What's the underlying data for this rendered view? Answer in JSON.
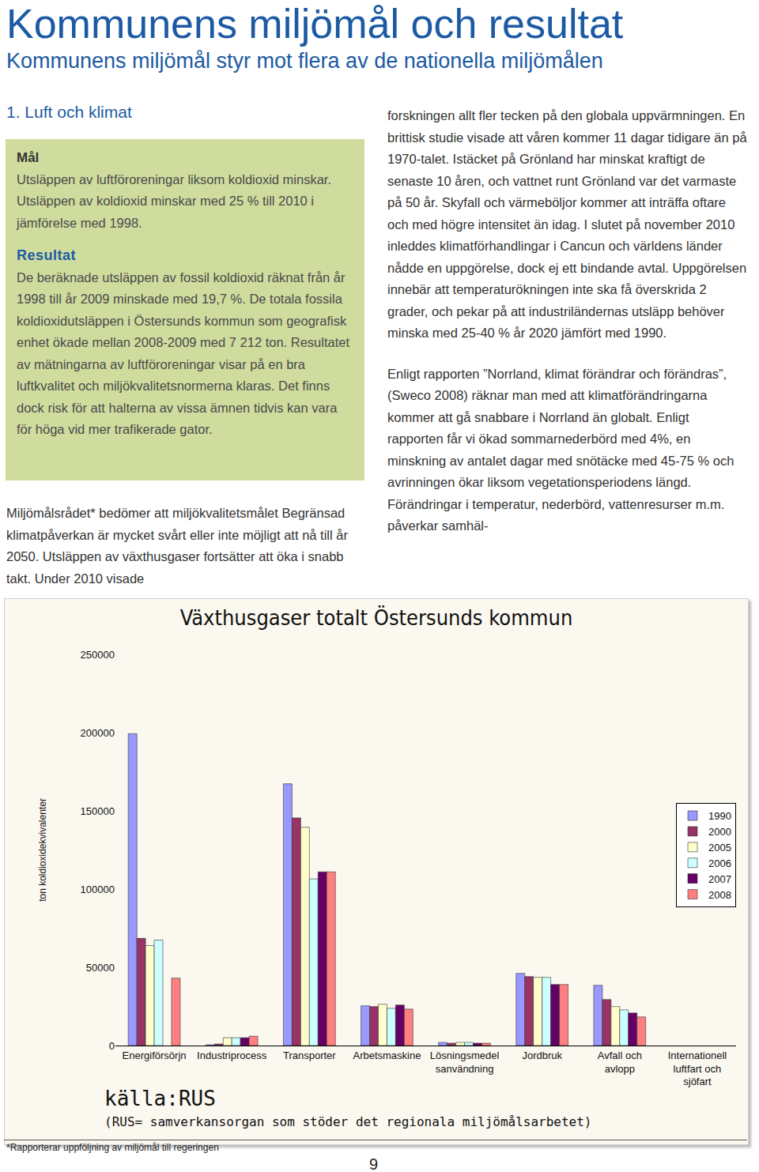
{
  "header": {
    "title": "Kommunens miljömål och resultat",
    "subtitle": "Kommunens miljömål styr mot flera av de nationella miljömålen"
  },
  "section": "1. Luft och klimat",
  "goal_box": {
    "goal_heading": "Mål",
    "goal_text": "Utsläppen av luftföroreningar liksom koldioxid minskar. Utsläppen av koldioxid minskar med 25 % till 2010 i jämförelse med 1998.",
    "result_heading": "Resultat",
    "result_text": "De beräknade utsläppen av fossil koldioxid räknat från år 1998 till år 2009 minskade med 19,7 %. De totala fossila koldioxidutsläppen i Östersunds kommun som geografisk enhet ökade mellan 2008-2009 med 7 212 ton. Resultatet av mätningarna av luftföroreningar visar på en bra luftkvalitet och miljökvalitetsnormerna klaras. Det finns dock risk för att halterna av vissa ämnen tidvis kan vara för höga vid mer trafikerade gator."
  },
  "left_text": "Miljömålsrådet* bedömer att miljökvalitetsmålet Begränsad klimatpåverkan är mycket svårt eller inte möjligt att nå till år 2050. Utsläppen av växthusgaser fortsätter att öka i snabb takt. Under 2010 visade",
  "right_text": [
    "forskningen allt fler tecken på den globala uppvärmningen. En brittisk studie visade att våren kommer 11 dagar tidigare än på 1970-talet. Istäcket på Grönland har minskat kraftigt de senaste 10 åren, och vattnet runt Grönland var det varmaste på 50 år. Skyfall och värmeböljor kommer att inträffa oftare och med högre intensitet än idag. I slutet på november 2010 inleddes klimatförhandlingar i Cancun och världens länder nådde en uppgörelse, dock ej ett bindande avtal. Uppgörelsen innebär att temperaturökningen inte ska få överskrida 2 grader, och pekar på att industriländernas utsläpp behöver minska med 25-40 % år 2020 jämfört med 1990.",
    "Enligt rapporten ”Norrland, klimat förändrar och förändras”, (Sweco 2008) räknar man med att klimatförändringarna kommer att gå snabbare i Norrland än globalt. Enligt rapporten får vi ökad sommarnederbörd med 4%, en minskning av antalet dagar med snötäcke med 45-75 % och avrinningen ökar liksom vegetationsperiodens längd. Förändringar i temperatur, nederbörd, vattenresurser m.m. påverkar samhäl-"
  ],
  "chart_data": {
    "type": "bar",
    "title": "Växthusgaser totalt Östersunds kommun",
    "y_label": "ton koldioxidekvivalenter",
    "categories": [
      "Energiförsörjn",
      "Industriprocess",
      "Transporter",
      "Arbetsmaskine",
      "Lösningsmedel\nsanvändning",
      "Jordbruk",
      "Avfall och\navlopp",
      "Internationell\nluftfart och\nsjöfart"
    ],
    "series": [
      {
        "name": "1990",
        "color": "#9999ff",
        "values": [
          199300,
          500,
          167300,
          25400,
          2000,
          46100,
          38500,
          null
        ]
      },
      {
        "name": "2000",
        "color": "#993366",
        "values": [
          68500,
          1000,
          145500,
          24900,
          1500,
          44100,
          29400,
          null
        ]
      },
      {
        "name": "2005",
        "color": "#ffffcc",
        "values": [
          63900,
          5000,
          139500,
          26400,
          2000,
          43600,
          24900,
          null
        ]
      },
      {
        "name": "2006",
        "color": "#ccffff",
        "values": [
          67400,
          5000,
          106500,
          23800,
          2000,
          43600,
          22800,
          null
        ]
      },
      {
        "name": "2007",
        "color": "#660066",
        "values": [
          null,
          5000,
          111000,
          25900,
          1500,
          39000,
          20800,
          null
        ]
      },
      {
        "name": "2008",
        "color": "#ff8080",
        "values": [
          43100,
          6000,
          111000,
          23300,
          1500,
          39000,
          18300,
          null
        ]
      }
    ],
    "ylim": [
      0,
      250000
    ],
    "yticks": [
      0,
      50000,
      100000,
      150000,
      200000,
      250000
    ],
    "grid": false,
    "legend": "right",
    "annotations": [
      "källa:RUS",
      "(RUS= samverkansorgan som stöder det regionala miljömålsarbetet)"
    ]
  },
  "footnote": "*Rapporterar uppföljning av miljömål till regeringen",
  "page_number": 9
}
